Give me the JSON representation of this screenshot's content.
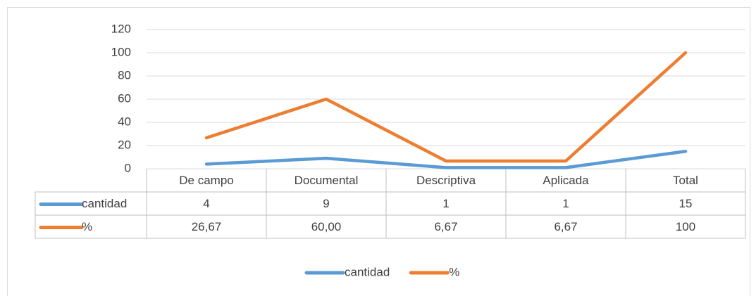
{
  "chart_data": {
    "type": "line",
    "categories": [
      "De campo",
      "Documental",
      "Descriptiva",
      "Aplicada",
      "Total"
    ],
    "series": [
      {
        "name": "cantidad",
        "color": "#5b9bd5",
        "values": [
          4,
          9,
          1,
          1,
          15
        ]
      },
      {
        "name": "%",
        "color": "#ed7d31",
        "values": [
          26.67,
          60,
          6.67,
          6.67,
          100
        ],
        "value_labels": [
          "26,67",
          "60,00",
          "6,67",
          "6,67",
          "100"
        ]
      }
    ],
    "ylim": [
      0,
      120
    ],
    "yticks": [
      0,
      20,
      40,
      60,
      80,
      100,
      120
    ],
    "grid": true,
    "legend": "bottom"
  }
}
